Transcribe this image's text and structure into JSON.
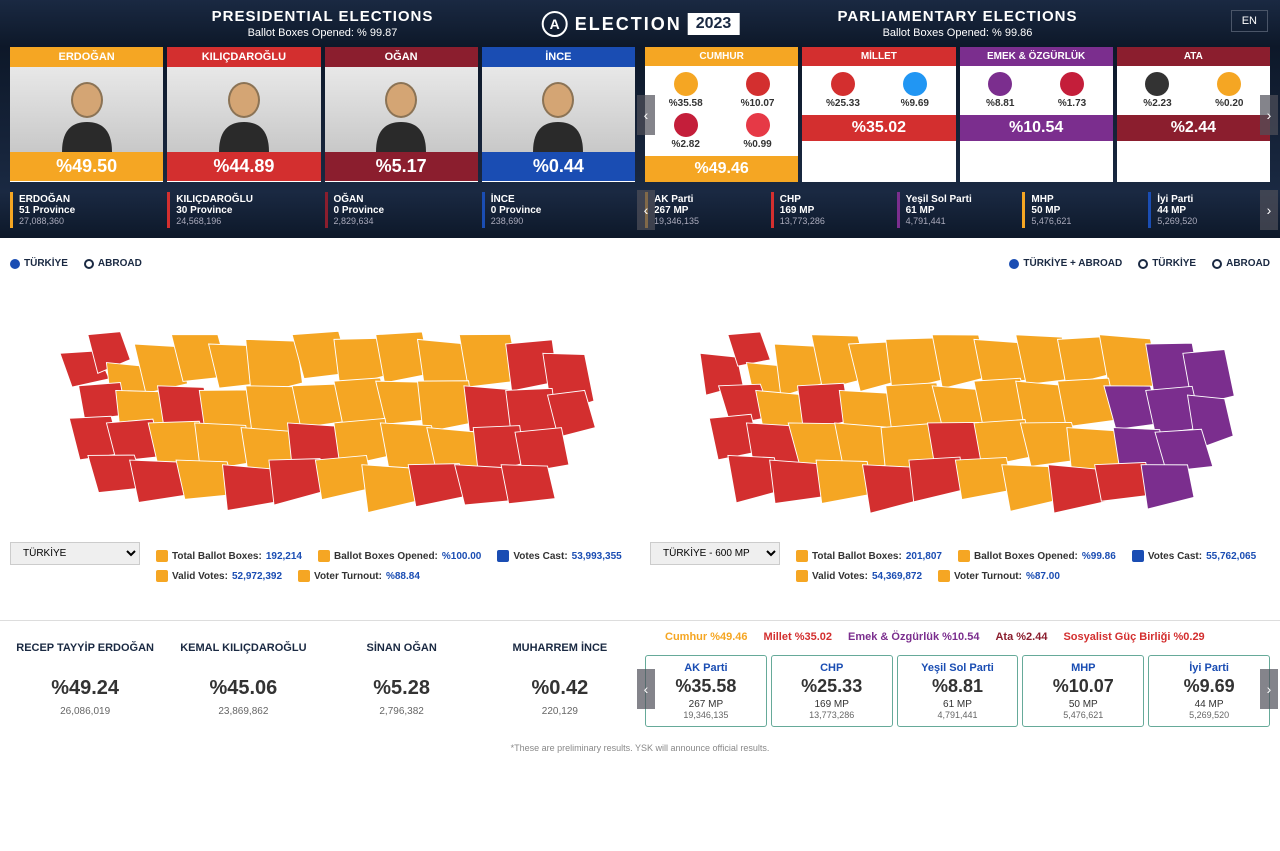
{
  "header": {
    "logo_text": "ELECTION",
    "logo_year": "2023",
    "lang": "EN",
    "pres": {
      "title": "PRESIDENTIAL ELECTIONS",
      "sub": "Ballot Boxes Opened: % 99.87"
    },
    "parl": {
      "title": "PARLIAMENTARY ELECTIONS",
      "sub": "Ballot Boxes Opened: % 99.86"
    }
  },
  "colors": {
    "orange": "#f5a623",
    "red": "#d32f2f",
    "darkred": "#8b1e2e",
    "blue": "#1a4db3",
    "purple": "#7b2e8e"
  },
  "candidates": [
    {
      "name": "ERDOĞAN",
      "pct": "%49.50",
      "color": "orange",
      "provinces": "51 Province",
      "votes": "27,088,360"
    },
    {
      "name": "KILIÇDAROĞLU",
      "pct": "%44.89",
      "color": "red",
      "provinces": "30 Province",
      "votes": "24,568,196"
    },
    {
      "name": "OĞAN",
      "pct": "%5.17",
      "color": "darkred",
      "provinces": "0 Province",
      "votes": "2,829,634"
    },
    {
      "name": "İNCE",
      "pct": "%0.44",
      "color": "blue",
      "provinces": "0 Province",
      "votes": "238,690"
    }
  ],
  "alliances": [
    {
      "name": "CUMHUR",
      "pct": "%49.46",
      "color": "orange",
      "parties": [
        {
          "pct": "%35.58",
          "icon": "#f5a623"
        },
        {
          "pct": "%10.07",
          "icon": "#d32f2f"
        },
        {
          "pct": "%2.82",
          "icon": "#c41e3a"
        },
        {
          "pct": "%0.99",
          "icon": "#e63946"
        }
      ]
    },
    {
      "name": "MİLLET",
      "pct": "%35.02",
      "color": "red",
      "parties": [
        {
          "pct": "%25.33",
          "icon": "#d32f2f"
        },
        {
          "pct": "%9.69",
          "icon": "#2196f3"
        }
      ]
    },
    {
      "name": "EMEK & ÖZGÜRLÜK",
      "pct": "%10.54",
      "color": "purple",
      "parties": [
        {
          "pct": "%8.81",
          "icon": "#7b2e8e"
        },
        {
          "pct": "%1.73",
          "icon": "#c41e3a"
        }
      ]
    },
    {
      "name": "ATA",
      "pct": "%2.44",
      "color": "darkred",
      "parties": [
        {
          "pct": "%2.23",
          "icon": "#333"
        },
        {
          "pct": "%0.20",
          "icon": "#f5a623"
        }
      ]
    }
  ],
  "party_stats": [
    {
      "name": "AK Parti",
      "mp": "267 MP",
      "votes": "19,346,135",
      "color": "orange"
    },
    {
      "name": "CHP",
      "mp": "169 MP",
      "votes": "13,773,286",
      "color": "red"
    },
    {
      "name": "Yeşil Sol Parti",
      "mp": "61 MP",
      "votes": "4,791,441",
      "color": "purple"
    },
    {
      "name": "MHP",
      "mp": "50 MP",
      "votes": "5,476,621",
      "color": "orange"
    },
    {
      "name": "İyi Parti",
      "mp": "44 MP",
      "votes": "5,269,520",
      "color": "blue"
    }
  ],
  "map_left": {
    "radios": [
      {
        "label": "TÜRKİYE",
        "active": true
      },
      {
        "label": "ABROAD",
        "active": false
      }
    ],
    "region": "TÜRKİYE",
    "stats": [
      {
        "label": "Total Ballot Boxes:",
        "val": "192,214",
        "ic": "#f5a623"
      },
      {
        "label": "Ballot Boxes Opened:",
        "val": "%100.00",
        "ic": "#f5a623"
      },
      {
        "label": "Votes Cast:",
        "val": "53,993,355",
        "ic": "#1a4db3"
      },
      {
        "label": "Valid Votes:",
        "val": "52,972,392",
        "ic": "#f5a623"
      },
      {
        "label": "Voter Turnout:",
        "val": "%88.84",
        "ic": "#f5a623"
      }
    ]
  },
  "map_right": {
    "radios": [
      {
        "label": "TÜRKİYE + ABROAD",
        "active": true
      },
      {
        "label": "TÜRKİYE",
        "active": false
      },
      {
        "label": "ABROAD",
        "active": false
      }
    ],
    "region": "TÜRKİYE - 600 MP",
    "stats": [
      {
        "label": "Total Ballot Boxes:",
        "val": "201,807",
        "ic": "#f5a623"
      },
      {
        "label": "Ballot Boxes Opened:",
        "val": "%99.86",
        "ic": "#f5a623"
      },
      {
        "label": "Votes Cast:",
        "val": "55,762,065",
        "ic": "#1a4db3"
      },
      {
        "label": "Valid Votes:",
        "val": "54,369,872",
        "ic": "#f5a623"
      },
      {
        "label": "Voter Turnout:",
        "val": "%87.00",
        "ic": "#f5a623"
      }
    ]
  },
  "bottom_cands": [
    {
      "name": "RECEP TAYYİP ERDOĞAN",
      "pct": "%49.24",
      "votes": "26,086,019"
    },
    {
      "name": "KEMAL KILIÇDAROĞLU",
      "pct": "%45.06",
      "votes": "23,869,862"
    },
    {
      "name": "SİNAN OĞAN",
      "pct": "%5.28",
      "votes": "2,796,382"
    },
    {
      "name": "MUHARREM İNCE",
      "pct": "%0.42",
      "votes": "220,129"
    }
  ],
  "bottom_alliances": [
    {
      "text": "Cumhur %49.46",
      "color": "#f5a623"
    },
    {
      "text": "Millet %35.02",
      "color": "#d32f2f"
    },
    {
      "text": "Emek & Özgürlük %10.54",
      "color": "#7b2e8e"
    },
    {
      "text": "Ata %2.44",
      "color": "#8b1e2e"
    },
    {
      "text": "Sosyalist Güç Birliği %0.29",
      "color": "#d32f2f"
    }
  ],
  "bottom_parties": [
    {
      "name": "AK Parti",
      "pct": "%35.58",
      "mp": "267 MP",
      "votes": "19,346,135"
    },
    {
      "name": "CHP",
      "pct": "%25.33",
      "mp": "169 MP",
      "votes": "13,773,286"
    },
    {
      "name": "Yeşil Sol Parti",
      "pct": "%8.81",
      "mp": "61 MP",
      "votes": "4,791,441"
    },
    {
      "name": "MHP",
      "pct": "%10.07",
      "mp": "50 MP",
      "votes": "5,476,621"
    },
    {
      "name": "İyi Parti",
      "pct": "%9.69",
      "mp": "44 MP",
      "votes": "5,269,520"
    }
  ],
  "disclaimer": "*These are preliminary results. YSK will announce official results."
}
